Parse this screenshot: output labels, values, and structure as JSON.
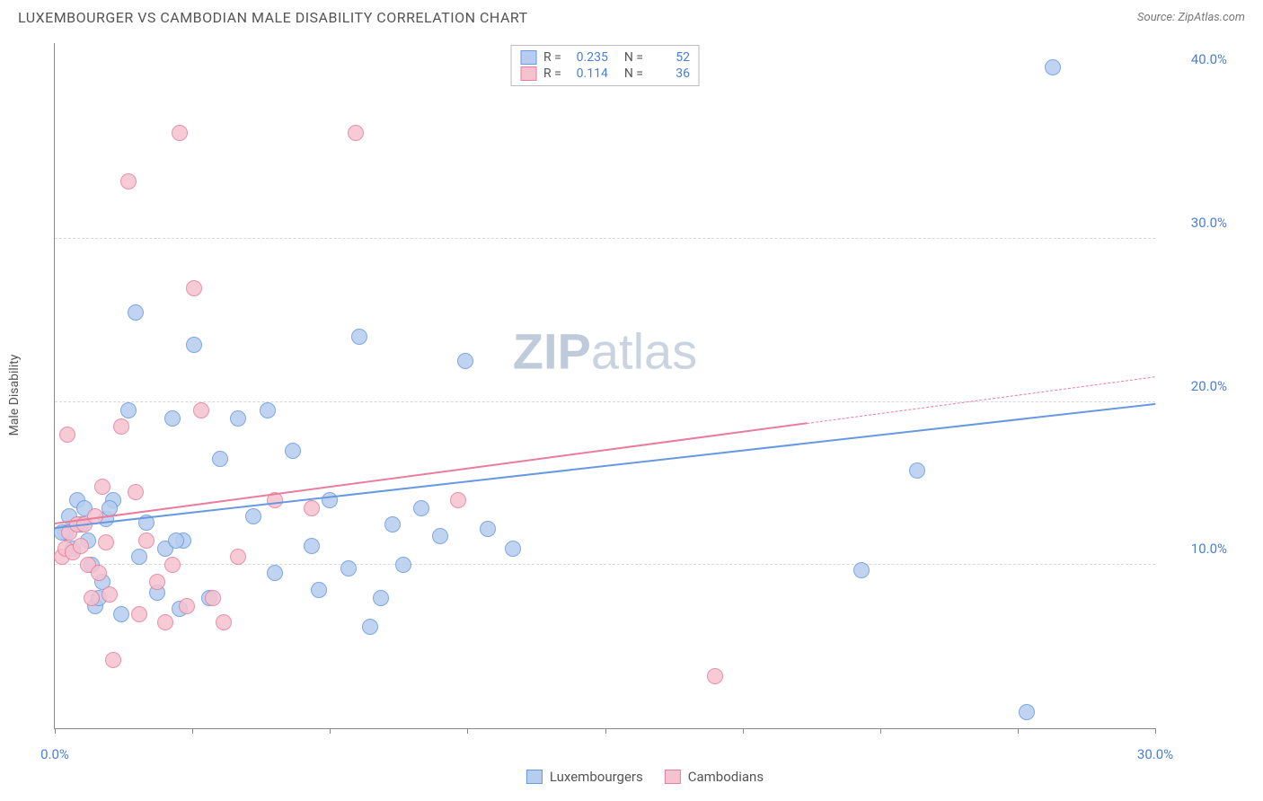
{
  "title": "LUXEMBOURGER VS CAMBODIAN MALE DISABILITY CORRELATION CHART",
  "source": "Source: ZipAtlas.com",
  "watermark": "ZIPatlas",
  "ylabel": "Male Disability",
  "chart": {
    "type": "scatter",
    "xlim": [
      0,
      30
    ],
    "ylim": [
      0,
      42
    ],
    "x_ticks": [
      0,
      3.75,
      7.5,
      11.25,
      15,
      18.75,
      22.5,
      26.25,
      30
    ],
    "x_tick_labels": {
      "0": "0.0%",
      "30": "30.0%"
    },
    "y_gridlines": [
      10,
      20,
      30
    ],
    "y_tick_labels": {
      "10": "10.0%",
      "20": "20.0%",
      "30": "30.0%",
      "40": "40.0%"
    },
    "y_extra_label_at": 40,
    "background_color": "#ffffff",
    "grid_color": "#d8d8d8",
    "axis_color": "#888888",
    "marker_radius": 9,
    "marker_fill_opacity": 0.25,
    "series": [
      {
        "name": "Luxembourgers",
        "color": "#6699e0",
        "fill": "#b6cdef",
        "R": "0.235",
        "N": "52",
        "trend": {
          "x1": 0,
          "y1": 12.2,
          "x2": 30,
          "y2": 19.8,
          "dash_from_x": null
        },
        "points": [
          [
            0.3,
            12.0
          ],
          [
            0.4,
            13.0
          ],
          [
            0.5,
            11.0
          ],
          [
            0.6,
            14.0
          ],
          [
            0.7,
            12.5
          ],
          [
            0.8,
            13.5
          ],
          [
            1.0,
            10.0
          ],
          [
            1.1,
            7.5
          ],
          [
            1.2,
            8.0
          ],
          [
            1.3,
            9.0
          ],
          [
            1.4,
            12.8
          ],
          [
            1.6,
            14.0
          ],
          [
            1.8,
            7.0
          ],
          [
            2.0,
            19.5
          ],
          [
            2.2,
            25.5
          ],
          [
            2.5,
            12.6
          ],
          [
            2.8,
            8.3
          ],
          [
            3.0,
            11.0
          ],
          [
            3.2,
            19.0
          ],
          [
            3.4,
            7.3
          ],
          [
            3.5,
            11.5
          ],
          [
            3.8,
            23.5
          ],
          [
            4.2,
            8.0
          ],
          [
            4.5,
            16.5
          ],
          [
            5.0,
            19.0
          ],
          [
            5.4,
            13.0
          ],
          [
            5.8,
            19.5
          ],
          [
            6.0,
            9.5
          ],
          [
            6.5,
            17.0
          ],
          [
            7.0,
            11.2
          ],
          [
            7.2,
            8.5
          ],
          [
            7.5,
            14.0
          ],
          [
            8.0,
            9.8
          ],
          [
            8.3,
            24.0
          ],
          [
            8.6,
            6.2
          ],
          [
            8.9,
            8.0
          ],
          [
            9.2,
            12.5
          ],
          [
            9.5,
            10.0
          ],
          [
            10.0,
            13.5
          ],
          [
            10.5,
            11.8
          ],
          [
            11.2,
            22.5
          ],
          [
            11.8,
            12.2
          ],
          [
            12.5,
            11.0
          ],
          [
            22.0,
            9.7
          ],
          [
            23.5,
            15.8
          ],
          [
            26.5,
            1.0
          ],
          [
            27.2,
            40.5
          ],
          [
            0.2,
            12.0
          ],
          [
            0.9,
            11.5
          ],
          [
            1.5,
            13.5
          ],
          [
            2.3,
            10.5
          ],
          [
            3.3,
            11.5
          ]
        ]
      },
      {
        "name": "Cambodians",
        "color": "#e87d9c",
        "fill": "#f5c2d0",
        "R": "0.114",
        "N": "36",
        "trend": {
          "x1": 0,
          "y1": 12.5,
          "x2": 30,
          "y2": 21.5,
          "dash_from_x": 20.5
        },
        "points": [
          [
            0.2,
            10.5
          ],
          [
            0.3,
            11.0
          ],
          [
            0.4,
            12.0
          ],
          [
            0.5,
            10.8
          ],
          [
            0.6,
            12.5
          ],
          [
            0.7,
            11.2
          ],
          [
            0.8,
            12.5
          ],
          [
            0.9,
            10.0
          ],
          [
            1.0,
            8.0
          ],
          [
            1.1,
            13.0
          ],
          [
            1.2,
            9.5
          ],
          [
            1.3,
            14.8
          ],
          [
            1.4,
            11.4
          ],
          [
            1.5,
            8.2
          ],
          [
            1.6,
            4.2
          ],
          [
            1.8,
            18.5
          ],
          [
            2.0,
            33.5
          ],
          [
            2.2,
            14.5
          ],
          [
            2.3,
            7.0
          ],
          [
            2.5,
            11.5
          ],
          [
            2.8,
            9.0
          ],
          [
            3.0,
            6.5
          ],
          [
            3.2,
            10.0
          ],
          [
            3.4,
            36.5
          ],
          [
            3.6,
            7.5
          ],
          [
            3.8,
            27.0
          ],
          [
            4.0,
            19.5
          ],
          [
            4.3,
            8.0
          ],
          [
            4.6,
            6.5
          ],
          [
            5.0,
            10.5
          ],
          [
            6.0,
            14.0
          ],
          [
            7.0,
            13.5
          ],
          [
            8.2,
            36.5
          ],
          [
            11.0,
            14.0
          ],
          [
            18.0,
            3.2
          ],
          [
            0.35,
            18.0
          ]
        ]
      }
    ]
  },
  "legend_top": [
    {
      "series": 0,
      "R_label": "R =",
      "N_label": "N ="
    },
    {
      "series": 1,
      "R_label": "R =",
      "N_label": "N ="
    }
  ],
  "legend_bottom": [
    "Luxembourgers",
    "Cambodians"
  ]
}
